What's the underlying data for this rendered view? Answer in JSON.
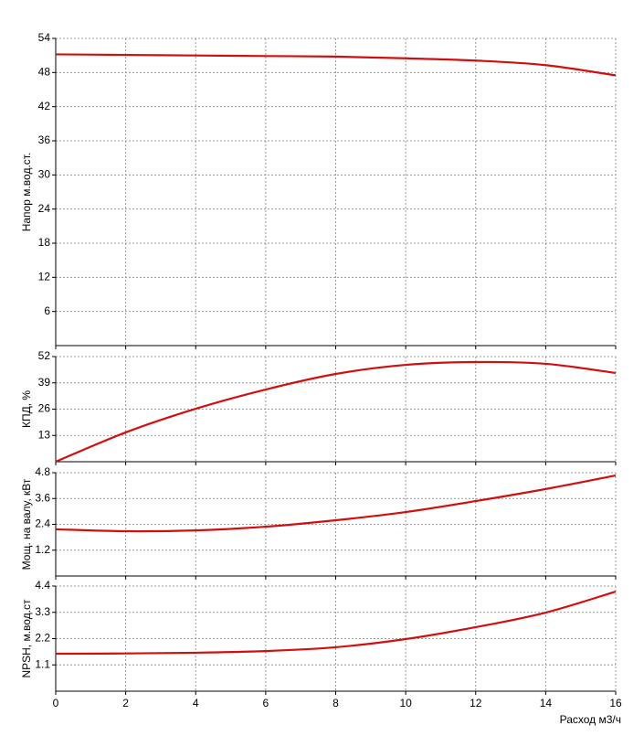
{
  "chart_data": [
    {
      "type": "line",
      "y_label": "Напор м.вод.ст.",
      "x": [
        0,
        2,
        4,
        6,
        8,
        10,
        12,
        14,
        16
      ],
      "values": [
        51.2,
        51.1,
        51,
        50.9,
        50.8,
        50.5,
        50.1,
        49.3,
        47.5
      ],
      "color": "#d01010",
      "xlim": [
        0,
        16
      ],
      "ylim": [
        0,
        54
      ],
      "yticks": [
        6,
        12,
        18,
        24,
        30,
        36,
        42,
        48,
        54
      ],
      "grid": true
    },
    {
      "type": "line",
      "y_label": "КПД, %",
      "x": [
        0,
        2,
        4,
        6,
        8,
        10,
        12,
        14,
        16
      ],
      "values": [
        0,
        14.5,
        26.2,
        35.7,
        43.4,
        47.9,
        49.3,
        48.4,
        43.9
      ],
      "color": "#d01010",
      "xlim": [
        0,
        16
      ],
      "ylim": [
        0,
        52
      ],
      "yticks": [
        13,
        26,
        39,
        52
      ],
      "grid": true
    },
    {
      "type": "line",
      "y_label": "Мощ. на валу, кВт",
      "x": [
        0,
        2,
        4,
        6,
        8,
        10,
        12,
        14,
        16
      ],
      "values": [
        2.17,
        2.08,
        2.12,
        2.29,
        2.59,
        2.97,
        3.48,
        4.04,
        4.67
      ],
      "color": "#d01010",
      "xlim": [
        0,
        16
      ],
      "ylim": [
        0,
        4.8
      ],
      "yticks": [
        1.2,
        2.4,
        3.6,
        4.8
      ],
      "grid": true
    },
    {
      "type": "line",
      "y_label": "NPSH, м.вод.ст",
      "x_label": "Расход м3/ч",
      "x": [
        0,
        2,
        4,
        6,
        8,
        10,
        12,
        14,
        16
      ],
      "values": [
        1.57,
        1.58,
        1.61,
        1.68,
        1.84,
        2.18,
        2.68,
        3.29,
        4.17
      ],
      "color": "#d01010",
      "xlim": [
        0,
        16
      ],
      "xticks": [
        0,
        2,
        4,
        6,
        8,
        10,
        12,
        14,
        16
      ],
      "ylim": [
        0,
        4.4
      ],
      "yticks": [
        1.1,
        2.2,
        3.3,
        4.4
      ],
      "grid": true
    }
  ]
}
